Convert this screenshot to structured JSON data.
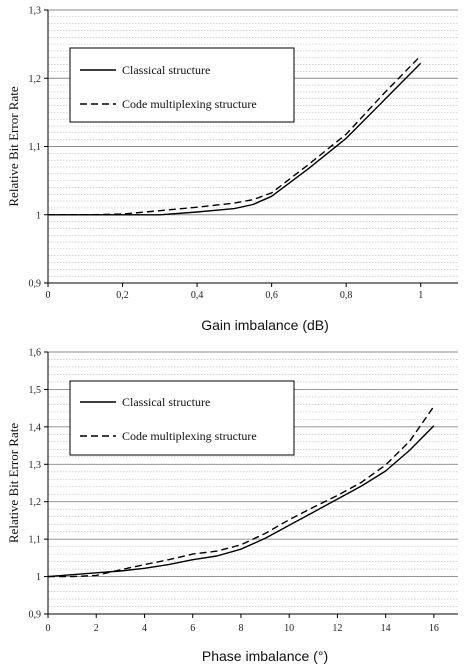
{
  "chart_data": [
    {
      "type": "line",
      "xlabel": "Gain imbalance (dB)",
      "ylabel": "Relative Bit Error Rate",
      "xlim": [
        0,
        1.1
      ],
      "ylim": [
        0.9,
        1.3
      ],
      "xticks": [
        "0",
        "0,2",
        "0,4",
        "0,6",
        "0,8",
        "1"
      ],
      "xtick_values": [
        0,
        0.2,
        0.4,
        0.6,
        0.8,
        1.0
      ],
      "yticks": [
        "0,9",
        "1",
        "1,1",
        "1,2",
        "1,3"
      ],
      "ytick_values": [
        0.9,
        1.0,
        1.1,
        1.2,
        1.3
      ],
      "minor_grid_step": 0.01,
      "major_grid_step": 0.1,
      "grid": true,
      "legend_position": "top-left",
      "series": [
        {
          "name": "Classical structure",
          "style": "solid",
          "x": [
            0,
            0.1,
            0.2,
            0.3,
            0.4,
            0.5,
            0.55,
            0.6,
            0.7,
            0.8,
            0.9,
            1.0
          ],
          "y": [
            1.0,
            1.0,
            1.0,
            1.0,
            1.004,
            1.009,
            1.015,
            1.027,
            1.068,
            1.112,
            1.167,
            1.222
          ]
        },
        {
          "name": "Code multiplexing structure",
          "style": "dashed",
          "x": [
            0,
            0.1,
            0.2,
            0.3,
            0.4,
            0.5,
            0.55,
            0.6,
            0.7,
            0.8,
            0.9,
            1.0
          ],
          "y": [
            1.0,
            1.0,
            1.001,
            1.006,
            1.011,
            1.017,
            1.022,
            1.032,
            1.074,
            1.118,
            1.177,
            1.233
          ]
        }
      ]
    },
    {
      "type": "line",
      "xlabel": "Phase imbalance (°)",
      "ylabel": "Relative Bit Error Rate",
      "xlim": [
        0,
        17
      ],
      "ylim": [
        0.9,
        1.6
      ],
      "xticks": [
        "0",
        "2",
        "4",
        "6",
        "8",
        "10",
        "12",
        "14",
        "16"
      ],
      "xtick_values": [
        0,
        2,
        4,
        6,
        8,
        10,
        12,
        14,
        16
      ],
      "yticks": [
        "0,9",
        "1",
        "1,1",
        "1,2",
        "1,3",
        "1,4",
        "1,5",
        "1,6"
      ],
      "ytick_values": [
        0.9,
        1.0,
        1.1,
        1.2,
        1.3,
        1.4,
        1.5,
        1.6
      ],
      "minor_grid_step": 0.02,
      "major_grid_step": 0.1,
      "grid": true,
      "legend_position": "top-left",
      "series": [
        {
          "name": "Classical structure",
          "style": "solid",
          "x": [
            0,
            1,
            2,
            3,
            4,
            5,
            6,
            7,
            8,
            9,
            10,
            11,
            12,
            13,
            14,
            15,
            16
          ],
          "y": [
            1.0,
            1.005,
            1.01,
            1.015,
            1.022,
            1.032,
            1.045,
            1.055,
            1.073,
            1.102,
            1.137,
            1.172,
            1.207,
            1.242,
            1.282,
            1.338,
            1.403
          ]
        },
        {
          "name": "Code multiplexing structure",
          "style": "dashed",
          "x": [
            0,
            1,
            2,
            3,
            4,
            5,
            6,
            7,
            8,
            9,
            10,
            11,
            12,
            13,
            14,
            15,
            16
          ],
          "y": [
            1.0,
            1.0,
            1.003,
            1.018,
            1.032,
            1.045,
            1.06,
            1.068,
            1.085,
            1.115,
            1.152,
            1.185,
            1.217,
            1.252,
            1.298,
            1.362,
            1.455
          ]
        }
      ]
    }
  ]
}
